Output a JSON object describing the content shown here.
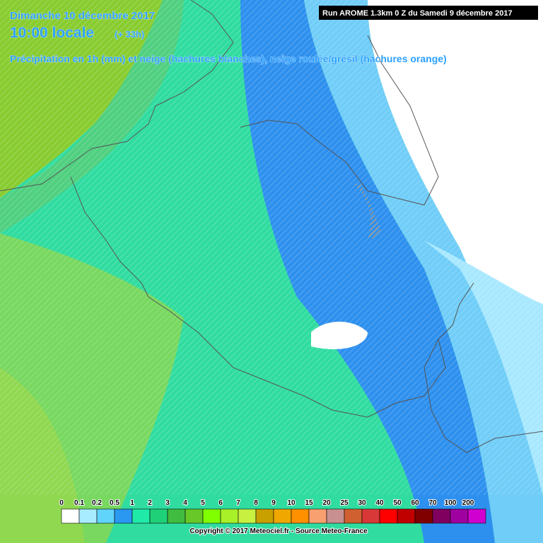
{
  "header": {
    "date": "Dimanche 10 décembre 2017",
    "time": "10:00 locale",
    "lead": "(+ 33h)",
    "description": "Précipitation en 1h (mm) et neige (hachures blanches), neige roulée/grésil (hachures orange)",
    "run": "Run AROME 1.3km 0 Z du Samedi 9 décembre 2017"
  },
  "legend": [
    {
      "label": "0",
      "color": "#ffffff"
    },
    {
      "label": "0.1",
      "color": "#a8ecff"
    },
    {
      "label": "0.2",
      "color": "#60d4fa"
    },
    {
      "label": "0.5",
      "color": "#2a98f0"
    },
    {
      "label": "1",
      "color": "#20eaa8"
    },
    {
      "label": "2",
      "color": "#20d078"
    },
    {
      "label": "3",
      "color": "#40bc40"
    },
    {
      "label": "4",
      "color": "#68c828"
    },
    {
      "label": "5",
      "color": "#80ff00"
    },
    {
      "label": "6",
      "color": "#a8f028"
    },
    {
      "label": "7",
      "color": "#c8f040"
    },
    {
      "label": "8",
      "color": "#c8a000"
    },
    {
      "label": "9",
      "color": "#f0a800"
    },
    {
      "label": "10",
      "color": "#ff9000"
    },
    {
      "label": "15",
      "color": "#f8a070"
    },
    {
      "label": "20",
      "color": "#c89090"
    },
    {
      "label": "25",
      "color": "#d06030"
    },
    {
      "label": "30",
      "color": "#d83838"
    },
    {
      "label": "40",
      "color": "#ff0000"
    },
    {
      "label": "50",
      "color": "#c00000"
    },
    {
      "label": "60",
      "color": "#800000"
    },
    {
      "label": "70",
      "color": "#800060"
    },
    {
      "label": "100",
      "color": "#a000a0"
    },
    {
      "label": "200",
      "color": "#d000d0"
    }
  ],
  "footer": {
    "copyright": "Copyright © 2017 Meteociel.fr - Source Meteo-France"
  }
}
